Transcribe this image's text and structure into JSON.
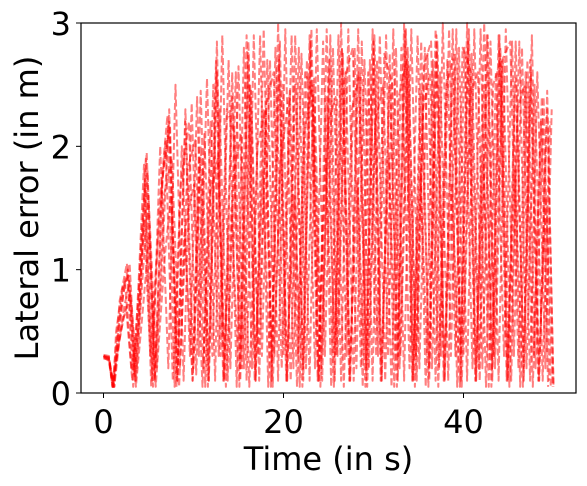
{
  "chart_data": {
    "type": "line",
    "title": "",
    "xlabel": "Time (in s)",
    "ylabel": "Lateral error (in m)",
    "xlim": [
      -2.5,
      52.5
    ],
    "ylim": [
      0,
      3
    ],
    "xticks": [
      0,
      20,
      40
    ],
    "yticks": [
      0,
      1,
      2,
      3
    ],
    "x_tick_labels": [
      "0",
      "20",
      "40"
    ],
    "y_tick_labels": [
      "0",
      "1",
      "2",
      "3"
    ],
    "grid": false,
    "legend": "none",
    "line_style": "dashed",
    "line_color": "#ff0000",
    "line_opacity": 0.5,
    "series_count": 8,
    "series": [
      {
        "x": [
          0,
          0.6,
          1,
          1.3,
          1.8,
          2.6,
          3.3,
          3.9,
          4.5,
          5.3,
          6.2,
          7.1,
          7.9,
          8.7,
          9.6,
          10.4,
          11.3,
          12.2,
          13,
          13.9,
          14.8,
          15.6,
          16.5,
          17.4,
          18.3,
          19.1,
          20,
          20.9,
          21.8,
          22.6,
          23.5,
          24.4,
          25.3,
          26.1,
          27,
          27.9,
          28.8,
          29.6,
          30.5,
          31.4,
          32.3,
          33.1,
          34,
          34.9,
          35.8,
          36.6,
          37.5,
          38.4,
          39.3,
          40.1,
          41,
          41.9,
          42.8,
          43.6,
          44.5,
          45.4,
          46.3,
          47.1,
          48,
          48.9,
          49.7
        ],
        "y": [
          0.3,
          0.29,
          0.05,
          0.3,
          0.75,
          1.05,
          0.05,
          0.9,
          1.85,
          0.05,
          1.5,
          2.25,
          0.05,
          2.0,
          0.3,
          2.4,
          0.05,
          2.5,
          0.3,
          2.7,
          0.05,
          2.8,
          0.2,
          2.9,
          0.05,
          2.8,
          0.3,
          2.9,
          0.05,
          2.7,
          0.2,
          2.85,
          0.05,
          2.9,
          0.3,
          2.8,
          0.05,
          2.7,
          0.3,
          2.9,
          0.05,
          2.8,
          0.2,
          2.9,
          0.05,
          2.7,
          0.3,
          2.95,
          0.05,
          2.8,
          0.2,
          2.95,
          0.05,
          2.6,
          0.3,
          2.85,
          0.05,
          2.7,
          0.2,
          2.4,
          0.05
        ]
      },
      {
        "x": [
          0,
          0.6,
          1.1,
          1.5,
          2.1,
          2.8,
          3.5,
          4.1,
          4.8,
          5.7,
          6.6,
          7.4,
          8.2,
          9.1,
          10,
          10.8,
          11.7,
          12.6,
          13.4,
          14.3,
          15.2,
          16.1,
          16.9,
          17.8,
          18.7,
          19.6,
          20.4,
          21.3,
          22.2,
          23.1,
          23.9,
          24.8,
          25.7,
          26.6,
          27.4,
          28.3,
          29.2,
          30.1,
          30.9,
          31.8,
          32.7,
          33.6,
          34.4,
          35.3,
          36.2,
          37.1,
          37.9,
          38.8,
          39.7,
          40.6,
          41.4,
          42.3,
          43.2,
          44.1,
          44.9,
          45.8,
          46.7,
          47.6,
          48.4,
          49.3,
          50
        ],
        "y": [
          0.28,
          0.27,
          0.05,
          0.4,
          0.85,
          0.95,
          0.1,
          1.1,
          1.95,
          0.1,
          1.8,
          2.15,
          0.1,
          2.3,
          0.2,
          2.0,
          0.1,
          2.6,
          0.1,
          2.4,
          0.2,
          2.75,
          0.1,
          2.3,
          0.25,
          2.85,
          0.1,
          2.5,
          0.2,
          2.95,
          0.1,
          2.4,
          0.3,
          2.75,
          0.1,
          2.6,
          0.2,
          2.9,
          0.1,
          2.5,
          0.3,
          2.95,
          0.1,
          2.45,
          0.2,
          2.85,
          0.1,
          2.6,
          0.3,
          2.95,
          0.1,
          2.5,
          0.2,
          2.8,
          0.1,
          2.55,
          0.2,
          2.9,
          0.1,
          2.3,
          0.05
        ]
      },
      {
        "x": [
          0,
          0.6,
          1.2,
          1.7,
          2.4,
          3.1,
          3.8,
          4.5,
          5.2,
          6,
          6.9,
          7.7,
          8.6,
          9.5,
          10.3,
          11.2,
          12.1,
          12.9,
          13.8,
          14.7,
          15.6,
          16.4,
          17.3,
          18.2,
          19,
          19.9,
          20.8,
          21.7,
          22.5,
          23.4,
          24.3,
          25.2,
          26,
          26.9,
          27.8,
          28.7,
          29.5,
          30.4,
          31.3,
          32.2,
          33,
          33.9,
          34.8,
          35.7,
          36.5,
          37.4,
          38.3,
          39.2,
          40,
          40.9,
          41.8,
          42.7,
          43.5,
          44.4,
          45.3,
          46.2,
          47,
          47.9,
          48.8,
          49.6
        ],
        "y": [
          0.3,
          0.28,
          0.05,
          0.55,
          0.9,
          0.2,
          0.5,
          1.4,
          0.3,
          1.2,
          2.05,
          0.1,
          1.7,
          2.2,
          0.15,
          2.1,
          0.3,
          2.3,
          0.1,
          2.6,
          0.2,
          2.45,
          0.1,
          2.7,
          0.3,
          2.5,
          0.1,
          2.8,
          0.2,
          2.55,
          0.1,
          2.9,
          0.3,
          2.6,
          0.1,
          2.85,
          0.2,
          2.7,
          0.1,
          2.95,
          0.3,
          2.65,
          0.1,
          2.8,
          0.2,
          2.6,
          0.1,
          2.95,
          0.3,
          2.75,
          0.1,
          2.9,
          0.2,
          2.7,
          0.1,
          2.85,
          0.2,
          2.5,
          0.1,
          2.2
        ]
      },
      {
        "x": [
          0,
          0.6,
          1,
          1.6,
          2.2,
          3,
          3.7,
          4.3,
          5,
          5.9,
          6.7,
          7.6,
          8.5,
          9.3,
          10.2,
          11.1,
          11.9,
          12.8,
          13.7,
          14.6,
          15.4,
          16.3,
          17.2,
          18.1,
          18.9,
          19.8,
          20.7,
          21.6,
          22.4,
          23.3,
          24.2,
          25.1,
          25.9,
          26.8,
          27.7,
          28.6,
          29.4,
          30.3,
          31.2,
          32.1,
          32.9,
          33.8,
          34.7,
          35.6,
          36.4,
          37.3,
          38.2,
          39.1,
          39.9,
          40.8,
          41.7,
          42.6,
          43.4,
          44.3,
          45.2,
          46.1,
          46.9,
          47.8,
          48.7,
          49.5
        ],
        "y": [
          0.29,
          0.26,
          0.05,
          0.35,
          0.6,
          0.8,
          0.2,
          0.9,
          1.6,
          0.2,
          1.6,
          1.9,
          0.2,
          1.8,
          2.05,
          0.2,
          2.2,
          0.3,
          2.3,
          2.1,
          0.2,
          2.5,
          0.3,
          2.35,
          2.6,
          0.2,
          2.45,
          0.3,
          2.6,
          2.4,
          0.2,
          2.7,
          0.3,
          2.55,
          2.8,
          0.2,
          2.6,
          0.3,
          2.75,
          2.5,
          0.2,
          2.8,
          0.3,
          2.65,
          2.85,
          0.2,
          2.7,
          0.3,
          2.8,
          2.6,
          0.2,
          2.9,
          0.3,
          2.7,
          2.85,
          0.2,
          2.6,
          0.3,
          2.4,
          0.1
        ]
      },
      {
        "x": [
          0,
          0.6,
          1.1,
          1.4,
          2,
          2.7,
          3.4,
          4,
          4.7,
          5.5,
          6.4,
          7.3,
          8.1,
          9,
          9.9,
          10.7,
          11.6,
          12.5,
          13.3,
          14.2,
          15.1,
          15.9,
          16.8,
          17.7,
          18.6,
          19.4,
          20.3,
          21.2,
          22.1,
          22.9,
          23.8,
          24.7,
          25.6,
          26.4,
          27.3,
          28.2,
          29.1,
          29.9,
          30.8,
          31.7,
          32.6,
          33.4,
          34.3,
          35.2,
          36.1,
          36.9,
          37.8,
          38.7,
          39.6,
          40.4,
          41.3,
          42.2,
          43.1,
          43.9,
          44.8,
          45.7,
          46.6,
          47.4,
          48.3,
          49.2,
          49.9
        ],
        "y": [
          0.31,
          0.3,
          0.05,
          0.5,
          0.8,
          1.0,
          0.15,
          0.6,
          1.9,
          0.05,
          0.9,
          2.3,
          0.05,
          1.3,
          0.1,
          1.9,
          0.05,
          2.7,
          0.1,
          1.5,
          0.05,
          2.9,
          0.1,
          1.8,
          0.05,
          3.0,
          0.1,
          1.6,
          0.05,
          2.9,
          0.1,
          1.9,
          0.05,
          3.0,
          0.1,
          1.7,
          0.05,
          2.95,
          0.1,
          1.9,
          0.05,
          3.0,
          0.1,
          1.8,
          0.05,
          2.95,
          0.1,
          1.7,
          0.05,
          3.0,
          0.1,
          1.9,
          0.05,
          2.9,
          0.1,
          1.8,
          0.05,
          2.7,
          0.1,
          1.6,
          0.05
        ]
      },
      {
        "x": [
          0,
          0.6,
          1.2,
          1.8,
          2.5,
          3.2,
          3.9,
          4.6,
          5.4,
          6.3,
          7.2,
          8,
          8.9,
          9.8,
          10.6,
          11.5,
          12.4,
          13.2,
          14.1,
          15,
          15.9,
          16.7,
          17.6,
          18.5,
          19.4,
          20.2,
          21.1,
          22,
          22.9,
          23.7,
          24.6,
          25.5,
          26.4,
          27.2,
          28.1,
          29,
          29.9,
          30.7,
          31.6,
          32.5,
          33.4,
          34.2,
          35.1,
          36,
          36.9,
          37.7,
          38.6,
          39.5,
          40.4,
          41.2,
          42.1,
          43,
          43.9,
          44.7,
          45.6,
          46.5,
          47.4,
          48.2,
          49.1,
          49.8
        ],
        "y": [
          0.3,
          0.27,
          0.05,
          0.45,
          0.7,
          0.1,
          0.8,
          1.7,
          0.1,
          2.0,
          0.2,
          2.5,
          0.1,
          2.35,
          0.3,
          2.55,
          0.1,
          2.9,
          0.2,
          2.65,
          0.1,
          2.9,
          0.3,
          2.7,
          0.1,
          2.95,
          0.2,
          2.75,
          0.1,
          2.95,
          0.3,
          2.8,
          0.1,
          2.95,
          0.2,
          2.7,
          0.1,
          2.9,
          0.3,
          2.8,
          0.1,
          2.95,
          0.2,
          2.75,
          0.1,
          3.0,
          0.3,
          2.8,
          0.1,
          2.95,
          0.2,
          2.85,
          0.1,
          2.95,
          0.3,
          2.8,
          0.1,
          2.6,
          0.2,
          2.3
        ]
      },
      {
        "x": [
          0,
          0.6,
          1,
          1.5,
          2.3,
          2.9,
          3.6,
          4.4,
          5.1,
          5.8,
          6.8,
          7.5,
          8.4,
          9.2,
          10.1,
          11,
          11.8,
          12.7,
          13.6,
          14.5,
          15.3,
          16.2,
          17.1,
          18,
          18.8,
          19.7,
          20.6,
          21.5,
          22.3,
          23.2,
          24.1,
          25,
          25.8,
          26.7,
          27.6,
          28.5,
          29.3,
          30.2,
          31.1,
          32,
          32.8,
          33.7,
          34.6,
          35.5,
          36.3,
          37.2,
          38.1,
          39,
          39.8,
          40.7,
          41.6,
          42.5,
          43.3,
          44.2,
          45.1,
          46,
          46.8,
          47.7,
          48.6,
          49.4
        ],
        "y": [
          0.3,
          0.29,
          0.05,
          0.3,
          0.7,
          0.9,
          0.05,
          0.7,
          1.3,
          0.05,
          1.1,
          1.6,
          0.05,
          1.4,
          1.7,
          0.05,
          1.6,
          1.9,
          0.05,
          1.8,
          2.1,
          0.05,
          2.0,
          2.3,
          0.05,
          1.9,
          2.4,
          0.05,
          2.1,
          2.5,
          0.05,
          2.2,
          2.4,
          0.05,
          2.3,
          2.6,
          0.05,
          2.2,
          2.5,
          0.05,
          2.4,
          2.7,
          0.05,
          2.3,
          2.6,
          0.05,
          2.5,
          2.75,
          0.05,
          2.4,
          2.6,
          0.05,
          2.5,
          2.7,
          0.05,
          2.3,
          2.5,
          0.05,
          2.2,
          0.05
        ]
      },
      {
        "x": [
          0,
          0.6,
          1.1,
          1.6,
          2.2,
          2.9,
          3.6,
          4.2,
          4.9,
          5.7,
          6.5,
          7.3,
          8.2,
          9.1,
          9.9,
          10.8,
          11.7,
          12.6,
          13.4,
          14.3,
          15.2,
          16.1,
          16.9,
          17.8,
          18.7,
          19.5,
          20.4,
          21.3,
          22.2,
          23,
          23.9,
          24.8,
          25.7,
          26.5,
          27.4,
          28.3,
          29.2,
          30,
          30.9,
          31.8,
          32.7,
          33.5,
          34.4,
          35.3,
          36.2,
          37,
          37.9,
          38.8,
          39.7,
          40.5,
          41.4,
          42.3,
          43.2,
          44,
          44.9,
          45.8,
          46.7,
          47.5,
          48.4,
          49.3,
          50
        ],
        "y": [
          0.29,
          0.28,
          0.05,
          0.4,
          0.8,
          1.05,
          0.1,
          1.0,
          1.8,
          0.1,
          1.7,
          2.2,
          0.1,
          2.2,
          0.1,
          2.45,
          0.1,
          2.85,
          0.1,
          2.6,
          0.1,
          2.85,
          0.1,
          2.95,
          0.1,
          2.7,
          0.1,
          2.9,
          0.1,
          2.85,
          0.1,
          2.95,
          0.1,
          2.8,
          0.1,
          2.95,
          0.1,
          2.85,
          0.1,
          2.75,
          0.1,
          2.95,
          0.1,
          2.85,
          0.1,
          2.9,
          0.1,
          2.95,
          0.1,
          2.85,
          0.1,
          3.0,
          0.1,
          2.9,
          0.1,
          2.85,
          0.1,
          2.6,
          0.1,
          2.45,
          0.05
        ]
      }
    ]
  }
}
